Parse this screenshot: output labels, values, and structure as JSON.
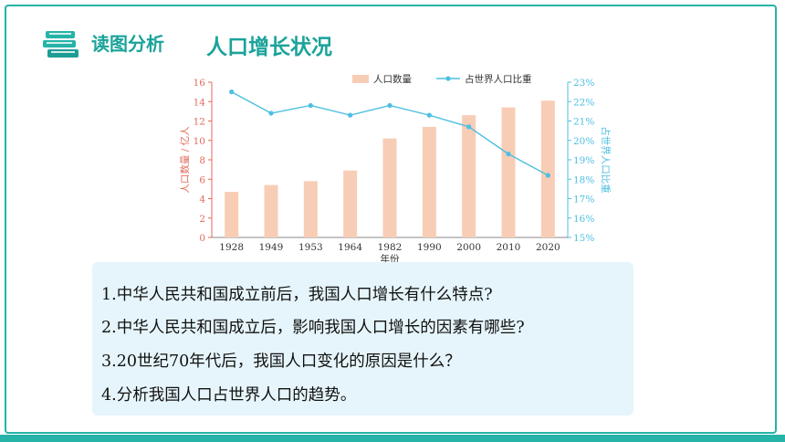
{
  "header": {
    "section_label": "读图分析",
    "topic_title": "人口增长状况"
  },
  "icons": {
    "title_icon": "stacked-books-icon"
  },
  "colors": {
    "accent": "#26b3a8",
    "bar": "#f8cdb6",
    "line": "#4dbfe2",
    "left_axis": "#e26a5a",
    "right_axis": "#4dbfe2",
    "question_box": "#e6f5fb"
  },
  "chart_data": {
    "type": "bar",
    "categories": [
      "1928",
      "1949",
      "1953",
      "1964",
      "1982",
      "1990",
      "2000",
      "2010",
      "2020"
    ],
    "xlabel": "年份",
    "ylabel": "人口数量 / 亿人",
    "y2label": "占世界人口比重",
    "ylim": [
      0,
      16
    ],
    "y2lim": [
      15,
      23
    ],
    "yticks": [
      "0",
      "2",
      "4",
      "6",
      "8",
      "10",
      "12",
      "14",
      "16"
    ],
    "y2ticks": [
      "15%",
      "16%",
      "17%",
      "18%",
      "19%",
      "20%",
      "21%",
      "22%",
      "23%"
    ],
    "legend": [
      "人口数量",
      "占世界人口比重"
    ],
    "legend_position": "top",
    "series": [
      {
        "name": "人口数量",
        "type": "bar",
        "axis": "left",
        "values": [
          4.7,
          5.4,
          5.8,
          6.9,
          10.2,
          11.4,
          12.6,
          13.4,
          14.1
        ]
      },
      {
        "name": "占世界人口比重",
        "type": "line",
        "axis": "right",
        "values": [
          22.5,
          21.4,
          21.8,
          21.3,
          21.8,
          21.3,
          20.7,
          19.3,
          18.2
        ]
      }
    ]
  },
  "questions": [
    "1.中华人民共和国成立前后，我国人口增长有什么特点?",
    "2.中华人民共和国成立后，影响我国人口增长的因素有哪些?",
    "3.20世纪70年代后，我国人口变化的原因是什么？",
    "4.分析我国人口占世界人口的趋势。"
  ]
}
